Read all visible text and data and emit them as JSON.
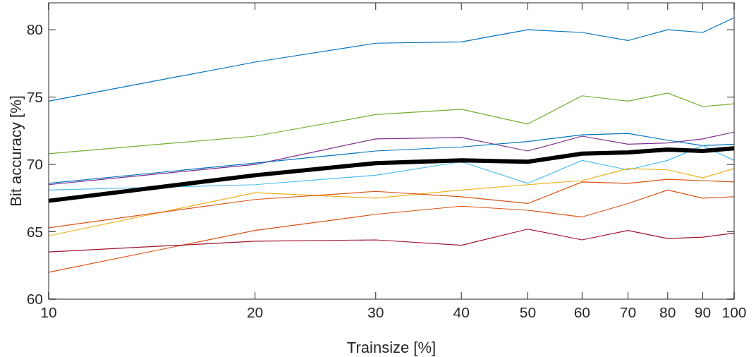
{
  "chart_data": {
    "type": "line",
    "xlabel": "Trainsize [%]",
    "ylabel": "Bit accuracy [%]",
    "log": "x",
    "xlim": [
      10,
      100
    ],
    "xticks": [
      10,
      20,
      30,
      40,
      50,
      60,
      70,
      80,
      90,
      100
    ],
    "ylim": [
      60,
      82
    ],
    "yticks": [
      60,
      65,
      70,
      75,
      80
    ],
    "grid": false,
    "marker": "none",
    "line_style": "solid",
    "x": [
      10,
      20,
      30,
      40,
      50,
      60,
      70,
      80,
      90,
      100
    ],
    "series": [
      {
        "color": "#0072bd",
        "values": [
          74.7,
          77.6,
          79.0,
          79.1,
          80.0,
          79.8,
          79.2,
          80.0,
          79.8,
          80.9
        ]
      },
      {
        "color": "#77ac30",
        "values": [
          70.8,
          72.1,
          73.7,
          74.1,
          73.0,
          75.1,
          74.7,
          75.3,
          74.3,
          74.5
        ]
      },
      {
        "color": "#7e2f8e",
        "values": [
          68.5,
          70.0,
          71.9,
          72.0,
          71.0,
          72.1,
          71.5,
          71.6,
          71.9,
          72.4
        ]
      },
      {
        "color": "#0072bd",
        "values": [
          68.6,
          70.1,
          71.0,
          71.3,
          71.7,
          72.2,
          72.3,
          71.8,
          71.4,
          71.5
        ]
      },
      {
        "color": "#4dbeee",
        "values": [
          68.1,
          68.5,
          69.2,
          70.2,
          68.6,
          70.3,
          69.6,
          70.3,
          71.4,
          70.3
        ]
      },
      {
        "color": "#edb120",
        "values": [
          64.7,
          67.9,
          67.5,
          68.1,
          68.5,
          68.8,
          69.7,
          69.6,
          69.0,
          69.7
        ]
      },
      {
        "color": "#d95319",
        "values": [
          65.3,
          67.4,
          68.0,
          67.6,
          67.1,
          68.7,
          68.6,
          68.9,
          68.8,
          68.7
        ]
      },
      {
        "color": "#d95319",
        "values": [
          62.0,
          65.1,
          66.3,
          66.9,
          66.6,
          66.1,
          67.1,
          68.1,
          67.5,
          67.6
        ]
      },
      {
        "color": "#a2142f",
        "values": [
          63.5,
          64.3,
          64.4,
          64.0,
          65.2,
          64.4,
          65.1,
          64.5,
          64.6,
          64.9
        ]
      },
      {
        "color": "#000000",
        "values": [
          67.3,
          69.2,
          70.1,
          70.3,
          70.2,
          70.8,
          70.9,
          71.1,
          71.0,
          71.2
        ]
      }
    ]
  }
}
